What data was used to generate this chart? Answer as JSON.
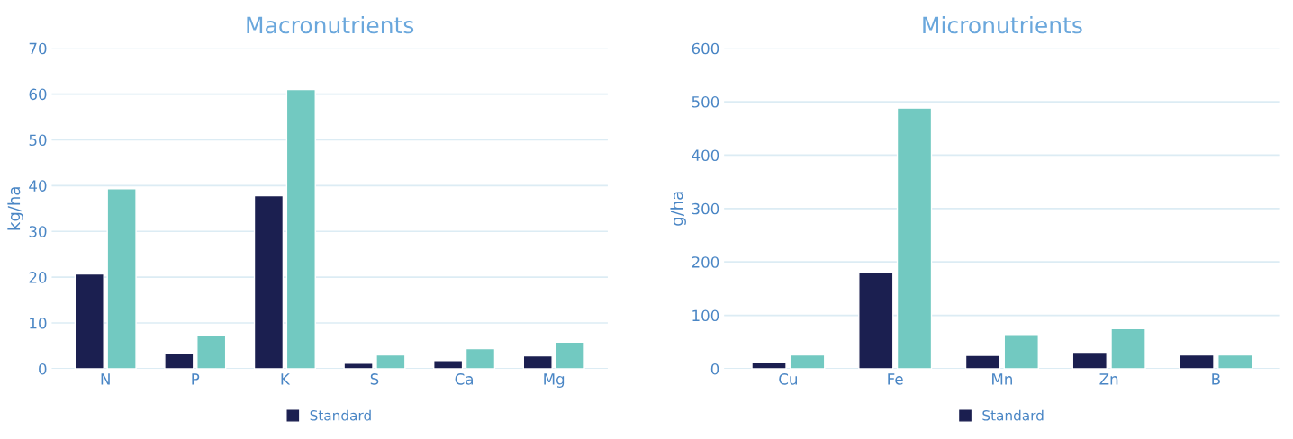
{
  "chart_data": [
    {
      "type": "bar",
      "title": "Macronutrients",
      "ylabel": "kg/ha",
      "categories": [
        "N",
        "P",
        "K",
        "S",
        "Ca",
        "Mg"
      ],
      "series": [
        {
          "name": "Standard",
          "color": "#1b1f50",
          "values": [
            20.7,
            3.4,
            37.8,
            1.2,
            1.8,
            2.8
          ]
        },
        {
          "color": "#72c9c1",
          "values": [
            39.3,
            7.3,
            61,
            3,
            4.4,
            5.8
          ]
        }
      ],
      "ylim": [
        0,
        70
      ],
      "yticks": [
        0,
        10,
        20,
        30,
        40,
        50,
        60,
        70
      ],
      "grid": "y",
      "legend": "bottom"
    },
    {
      "type": "bar",
      "title": "Micronutrients",
      "ylabel": "g/ha",
      "categories": [
        "Cu",
        "Fe",
        "Mn",
        "Zn",
        "B"
      ],
      "series": [
        {
          "name": "Standard",
          "color": "#1b1f50",
          "values": [
            11,
            181,
            25,
            31,
            26
          ]
        },
        {
          "color": "#72c9c1",
          "values": [
            26,
            488,
            64,
            75,
            26
          ]
        }
      ],
      "ylim": [
        0,
        600
      ],
      "yticks": [
        0,
        100,
        200,
        300,
        400,
        500,
        600
      ],
      "grid": "y",
      "legend": "bottom"
    }
  ]
}
